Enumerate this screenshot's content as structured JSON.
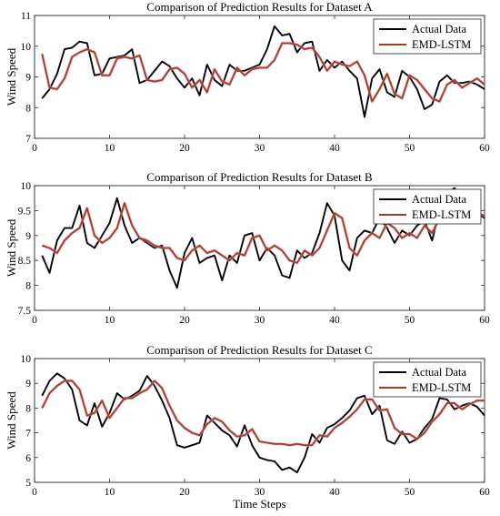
{
  "colors": {
    "actual": "#000000",
    "pred": "#a0401a",
    "pred_glow": "#f0a0d8"
  },
  "chart_data": [
    {
      "type": "line",
      "title": "Comparison of Prediction Results for Dataset A",
      "xlabel": "",
      "ylabel": "Wind Speed",
      "xlim": [
        0,
        60
      ],
      "ylim": [
        7,
        11
      ],
      "xticks": [
        0,
        10,
        20,
        30,
        40,
        50,
        60
      ],
      "yticks": [
        7,
        8,
        9,
        10,
        11
      ],
      "legend": "top-right",
      "x": [
        1,
        2,
        3,
        4,
        5,
        6,
        7,
        8,
        9,
        10,
        11,
        12,
        13,
        14,
        15,
        16,
        17,
        18,
        19,
        20,
        21,
        22,
        23,
        24,
        25,
        26,
        27,
        28,
        29,
        30,
        31,
        32,
        33,
        34,
        35,
        36,
        37,
        38,
        39,
        40,
        41,
        42,
        43,
        44,
        45,
        46,
        47,
        48,
        49,
        50,
        51,
        52,
        53,
        54,
        55,
        56,
        57,
        58,
        59,
        60
      ],
      "series": [
        {
          "name": "Actual Data",
          "values": [
            8.3,
            8.6,
            9.1,
            9.9,
            9.95,
            10.15,
            10.1,
            9.05,
            9.1,
            9.6,
            9.65,
            9.7,
            9.9,
            8.8,
            8.9,
            9.2,
            9.5,
            9.35,
            8.95,
            8.65,
            8.95,
            8.4,
            9.4,
            8.9,
            8.7,
            9.4,
            9.2,
            9.2,
            9.3,
            9.4,
            9.9,
            10.65,
            10.35,
            10.4,
            9.8,
            10.1,
            10.15,
            9.2,
            9.55,
            9.3,
            9.5,
            9.2,
            8.95,
            7.7,
            8.95,
            9.25,
            8.5,
            8.35,
            9.2,
            9.0,
            8.6,
            7.95,
            8.1,
            8.85,
            9.05,
            8.8,
            8.8,
            8.85,
            8.75,
            8.6
          ]
        },
        {
          "name": "EMD-LSTM",
          "values": [
            9.75,
            8.65,
            8.6,
            8.95,
            9.65,
            9.8,
            9.9,
            9.8,
            9.05,
            9.05,
            9.6,
            9.65,
            9.6,
            9.7,
            8.9,
            8.85,
            8.9,
            9.25,
            9.3,
            9.1,
            8.65,
            8.9,
            8.5,
            9.25,
            8.85,
            8.75,
            9.3,
            9.05,
            9.25,
            9.3,
            9.3,
            9.55,
            10.1,
            10.1,
            10.05,
            9.9,
            9.95,
            9.65,
            9.2,
            9.5,
            9.4,
            9.35,
            9.5,
            9.05,
            8.2,
            8.6,
            9.1,
            8.45,
            8.3,
            9.05,
            8.9,
            8.6,
            8.3,
            8.2,
            8.75,
            8.9,
            8.65,
            8.8,
            8.95,
            8.75
          ]
        }
      ]
    },
    {
      "type": "line",
      "title": "Comparison of Prediction Results for Dataset B",
      "xlabel": "",
      "ylabel": "Wind Speed",
      "xlim": [
        0,
        60
      ],
      "ylim": [
        7.5,
        10
      ],
      "xticks": [
        0,
        10,
        20,
        30,
        40,
        50,
        60
      ],
      "yticks": [
        7.5,
        8,
        8.5,
        9,
        9.5,
        10
      ],
      "legend": "top-right",
      "x": [
        1,
        2,
        3,
        4,
        5,
        6,
        7,
        8,
        9,
        10,
        11,
        12,
        13,
        14,
        15,
        16,
        17,
        18,
        19,
        20,
        21,
        22,
        23,
        24,
        25,
        26,
        27,
        28,
        29,
        30,
        31,
        32,
        33,
        34,
        35,
        36,
        37,
        38,
        39,
        40,
        41,
        42,
        43,
        44,
        45,
        46,
        47,
        48,
        49,
        50,
        51,
        52,
        53,
        54,
        55,
        56,
        57,
        58,
        59,
        60
      ],
      "series": [
        {
          "name": "Actual Data",
          "values": [
            8.6,
            8.25,
            8.9,
            9.15,
            9.15,
            9.6,
            8.85,
            8.75,
            9.0,
            9.25,
            9.75,
            9.2,
            8.85,
            8.95,
            8.85,
            8.75,
            8.8,
            8.3,
            7.95,
            8.65,
            8.95,
            8.45,
            8.55,
            8.6,
            8.1,
            8.6,
            8.45,
            9.0,
            9.05,
            8.5,
            8.75,
            8.6,
            8.2,
            8.15,
            8.7,
            8.55,
            8.65,
            9.05,
            9.65,
            9.4,
            8.5,
            8.3,
            8.95,
            9.1,
            9.05,
            9.35,
            9.15,
            8.85,
            9.1,
            9.0,
            9.2,
            9.3,
            8.9,
            9.5,
            9.85,
            9.95,
            9.55,
            9.55,
            9.45,
            9.35
          ]
        },
        {
          "name": "EMD-LSTM",
          "values": [
            8.8,
            8.75,
            8.65,
            8.9,
            9.05,
            9.15,
            9.55,
            9.0,
            8.85,
            8.95,
            9.15,
            9.65,
            9.2,
            8.95,
            8.9,
            8.8,
            8.75,
            8.75,
            8.55,
            8.5,
            8.7,
            8.8,
            8.65,
            8.7,
            8.6,
            8.5,
            8.65,
            8.6,
            8.95,
            9.0,
            8.7,
            8.8,
            8.7,
            8.5,
            8.45,
            8.7,
            8.6,
            8.75,
            9.1,
            9.45,
            9.35,
            8.75,
            8.6,
            8.9,
            9.05,
            8.95,
            9.25,
            9.15,
            8.95,
            9.05,
            8.95,
            9.2,
            9.05,
            9.35,
            9.65,
            9.8,
            9.6,
            9.5,
            9.45,
            9.4
          ]
        }
      ]
    },
    {
      "type": "line",
      "title": "Comparison of Prediction Results for Dataset C",
      "xlabel": "Time Steps",
      "ylabel": "Wind Speed",
      "xlim": [
        0,
        60
      ],
      "ylim": [
        5,
        10
      ],
      "xticks": [
        0,
        10,
        20,
        30,
        40,
        50,
        60
      ],
      "yticks": [
        5,
        6,
        7,
        8,
        9,
        10
      ],
      "legend": "top-right",
      "x": [
        1,
        2,
        3,
        4,
        5,
        6,
        7,
        8,
        9,
        10,
        11,
        12,
        13,
        14,
        15,
        16,
        17,
        18,
        19,
        20,
        21,
        22,
        23,
        24,
        25,
        26,
        27,
        28,
        29,
        30,
        31,
        32,
        33,
        34,
        35,
        36,
        37,
        38,
        39,
        40,
        41,
        42,
        43,
        44,
        45,
        46,
        47,
        48,
        49,
        50,
        51,
        52,
        53,
        54,
        55,
        56,
        57,
        58,
        59,
        60
      ],
      "series": [
        {
          "name": "Actual Data",
          "values": [
            8.5,
            9.1,
            9.4,
            9.2,
            8.75,
            7.5,
            7.3,
            8.2,
            7.25,
            7.8,
            8.6,
            8.35,
            8.5,
            8.7,
            9.3,
            8.9,
            8.3,
            7.6,
            6.5,
            6.4,
            6.5,
            6.6,
            7.7,
            7.4,
            7.1,
            6.9,
            6.45,
            7.3,
            6.5,
            6.0,
            5.9,
            5.85,
            5.5,
            5.6,
            5.4,
            6.0,
            6.95,
            6.6,
            7.2,
            7.35,
            7.6,
            7.9,
            8.4,
            8.5,
            7.75,
            8.1,
            6.7,
            6.55,
            7.05,
            6.6,
            6.75,
            7.2,
            7.55,
            8.4,
            8.35,
            7.95,
            8.1,
            8.2,
            8.05,
            7.7
          ]
        },
        {
          "name": "EMD-LSTM",
          "values": [
            8.0,
            8.6,
            8.9,
            9.1,
            9.1,
            8.75,
            7.7,
            7.8,
            8.3,
            7.6,
            8.0,
            8.4,
            8.4,
            8.6,
            8.75,
            9.1,
            8.8,
            8.1,
            7.5,
            7.2,
            7.0,
            6.9,
            7.35,
            7.6,
            7.45,
            7.1,
            6.85,
            6.9,
            7.15,
            6.65,
            6.6,
            6.55,
            6.55,
            6.5,
            6.55,
            6.5,
            6.5,
            6.9,
            6.85,
            7.2,
            7.4,
            7.65,
            7.95,
            8.35,
            8.35,
            7.9,
            7.95,
            7.2,
            6.95,
            6.95,
            6.75,
            7.0,
            7.45,
            7.75,
            8.2,
            8.2,
            7.95,
            8.15,
            8.3,
            8.3
          ]
        }
      ]
    }
  ]
}
